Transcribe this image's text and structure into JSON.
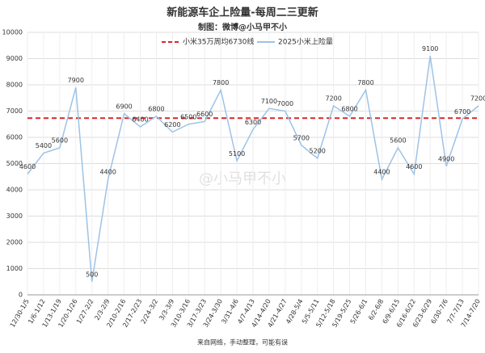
{
  "chart_data": {
    "type": "line",
    "title": "新能源车企上险量-每周二三更新",
    "subtitle": "制图：微博@小马甲不小",
    "footnote": "来自网络，手动整理，可能有误",
    "watermark": "@小马甲不小",
    "categories": [
      "12/30-1/5",
      "1/6-1/12",
      "1/13-1/19",
      "1/20-1/26",
      "1/27-2/2",
      "2/3-2/9",
      "2/10-2/16",
      "2/17-2/23",
      "2/24-3/2",
      "3/3-3/9",
      "3/10-3/16",
      "3/17-3/23",
      "3/24-3/30",
      "3/31-4/6",
      "4/7-4/13",
      "4/14-4/20",
      "4/21-4/27",
      "4/28-5/4",
      "5/5-5/11",
      "5/12-5/18",
      "5/19-5/25",
      "5/26-6/1",
      "6/2-6/8",
      "6/9-6/15",
      "6/16-6/22",
      "6/23-6/29",
      "6/30-7/6",
      "7/7-7/13",
      "7/14-7/20"
    ],
    "series": [
      {
        "name": "2025小米上险量",
        "color": "#9dc3e6",
        "values": [
          4600,
          5400,
          5600,
          7900,
          500,
          4400,
          6900,
          6400,
          6800,
          6200,
          6500,
          6600,
          7800,
          5100,
          6300,
          7100,
          7000,
          5700,
          5200,
          7200,
          6800,
          7800,
          4400,
          5600,
          4600,
          9100,
          4900,
          6700,
          7200
        ]
      }
    ],
    "reference_line": {
      "name": "小米35万周均6730线",
      "value": 6730,
      "color": "#d9262b"
    },
    "ylim": [
      0,
      10000
    ],
    "yticks": [
      0,
      1000,
      2000,
      3000,
      4000,
      5000,
      6000,
      7000,
      8000,
      9000,
      10000
    ],
    "grid": true,
    "legend": "top"
  }
}
